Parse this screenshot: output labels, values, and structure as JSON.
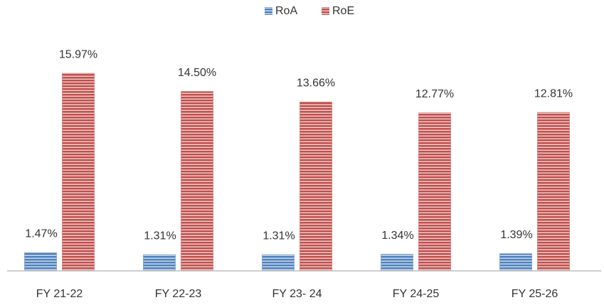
{
  "chart_data": {
    "type": "bar",
    "categories": [
      "FY 21-22",
      "FY 22-23",
      "FY 23- 24",
      "FY 24-25",
      "FY 25-26"
    ],
    "series": [
      {
        "name": "RoA",
        "color": "#4f81bd",
        "values": [
          1.47,
          1.31,
          1.31,
          1.34,
          1.39
        ],
        "value_labels": [
          "1.47%",
          "1.31%",
          "1.31%",
          "1.34%",
          "1.39%"
        ]
      },
      {
        "name": "RoE",
        "color": "#c0504d",
        "values": [
          15.97,
          14.5,
          13.66,
          12.77,
          12.81
        ],
        "value_labels": [
          "15.97%",
          "14.50%",
          "13.66%",
          "12.77%",
          "12.81%"
        ]
      }
    ],
    "ylim": [
      0,
      18.5
    ],
    "legend": "top"
  }
}
